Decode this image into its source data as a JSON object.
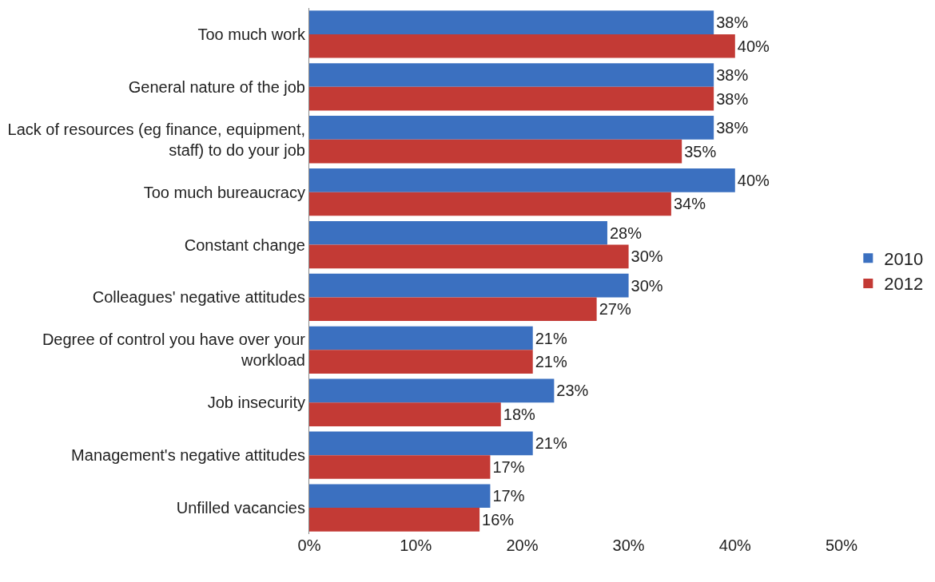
{
  "chart_data": {
    "type": "bar",
    "orientation": "horizontal",
    "categories": [
      "Too much work",
      "General nature of the job",
      "Lack of resources (eg finance, equipment, staff) to do your job",
      "Too much bureaucracy",
      "Constant change",
      "Colleagues' negative attitudes",
      "Degree of control you have over your workload",
      "Job insecurity",
      "Management's negative attitudes",
      "Unfilled vacancies"
    ],
    "series": [
      {
        "name": "2010",
        "color": "#3b70c0",
        "values": [
          38,
          38,
          38,
          40,
          28,
          30,
          21,
          23,
          21,
          17
        ],
        "value_labels": [
          "38%",
          "38%",
          "38%",
          "40%",
          "28%",
          "30%",
          "21%",
          "23%",
          "21%",
          "17%"
        ]
      },
      {
        "name": "2012",
        "color": "#c33a35",
        "values": [
          40,
          38,
          35,
          34,
          30,
          27,
          21,
          18,
          17,
          16
        ],
        "value_labels": [
          "40%",
          "38%",
          "35%",
          "34%",
          "30%",
          "27%",
          "21%",
          "18%",
          "17%",
          "16%"
        ]
      }
    ],
    "xlim": [
      0,
      50
    ],
    "xticks": [
      {
        "value": 0,
        "label": "0%"
      },
      {
        "value": 10,
        "label": "10%"
      },
      {
        "value": 20,
        "label": "20%"
      },
      {
        "value": 30,
        "label": "30%"
      },
      {
        "value": 40,
        "label": "40%"
      },
      {
        "value": 50,
        "label": "50%"
      }
    ],
    "legend": "right"
  }
}
